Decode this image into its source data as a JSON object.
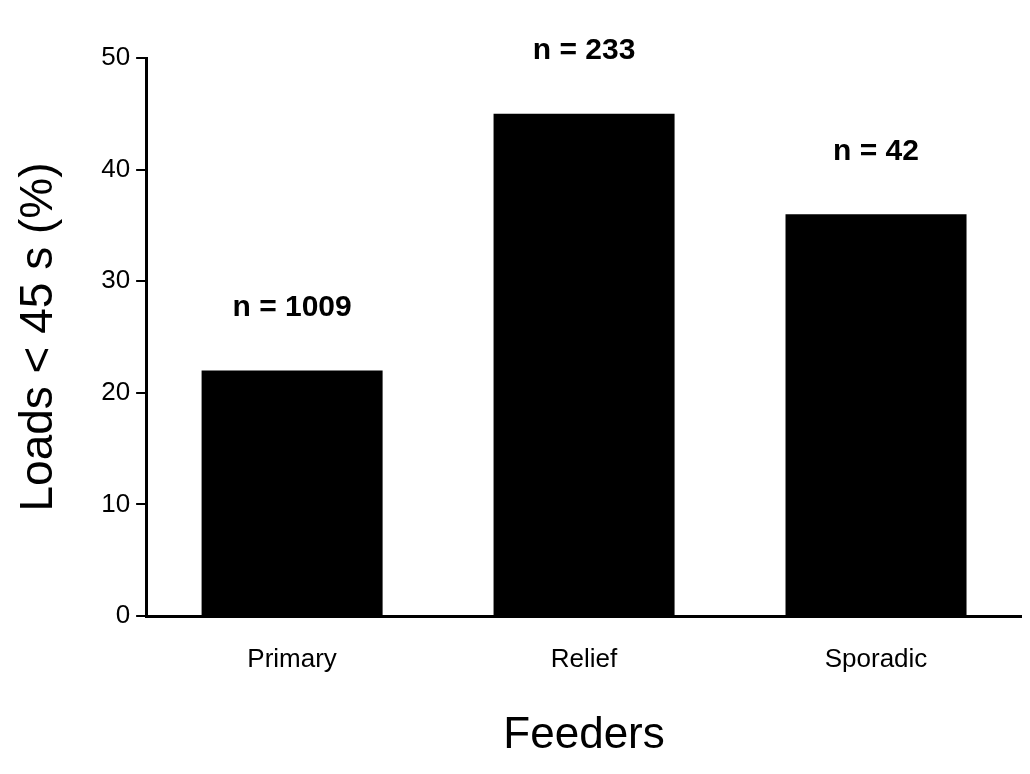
{
  "chart_data": {
    "type": "bar",
    "xlabel": "Feeders",
    "ylabel": "Loads < 45 s (%)",
    "categories": [
      "Primary",
      "Relief",
      "Sporadic"
    ],
    "values": [
      22,
      45,
      36
    ],
    "color": "#000000",
    "ylim": [
      0,
      50
    ],
    "yticks": [
      0,
      10,
      20,
      30,
      40,
      50
    ],
    "grid": false,
    "legend": false,
    "annotations": [
      {
        "text": "n = 1009",
        "x": "Primary",
        "y": 22
      },
      {
        "text": "n = 233",
        "x": "Relief",
        "y": 45
      },
      {
        "text": "n = 42",
        "x": "Sporadic",
        "y": 36
      }
    ]
  }
}
